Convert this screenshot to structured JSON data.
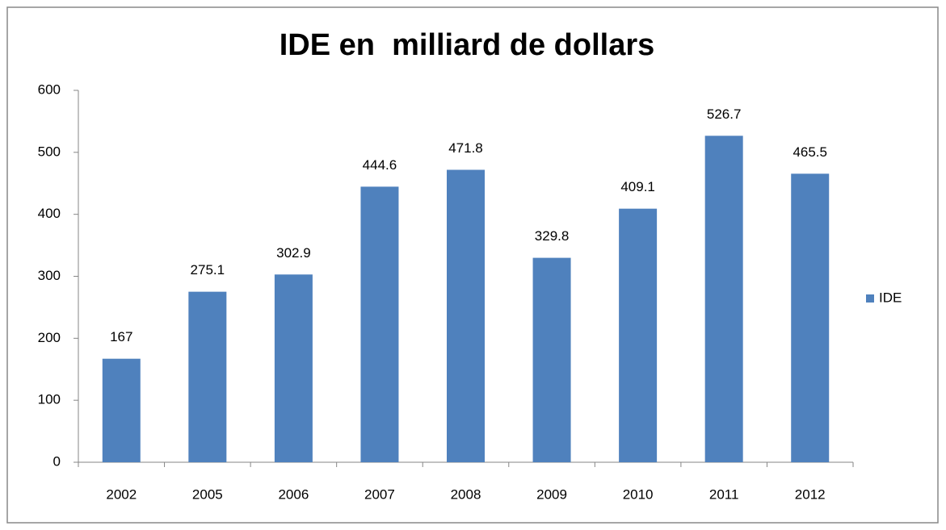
{
  "chart_data": {
    "type": "bar",
    "title": "IDE en  milliard de dollars",
    "categories": [
      "2002",
      "2005",
      "2006",
      "2007",
      "2008",
      "2009",
      "2010",
      "2011",
      "2012"
    ],
    "series": [
      {
        "name": "IDE",
        "color": "#4f81bd",
        "values": [
          167,
          275.1,
          302.9,
          444.6,
          471.8,
          329.8,
          409.1,
          526.7,
          465.5
        ]
      }
    ],
    "ylim": [
      0,
      600
    ],
    "yticks": [
      0,
      100,
      200,
      300,
      400,
      500,
      600
    ],
    "grid": false,
    "legend": "right"
  }
}
